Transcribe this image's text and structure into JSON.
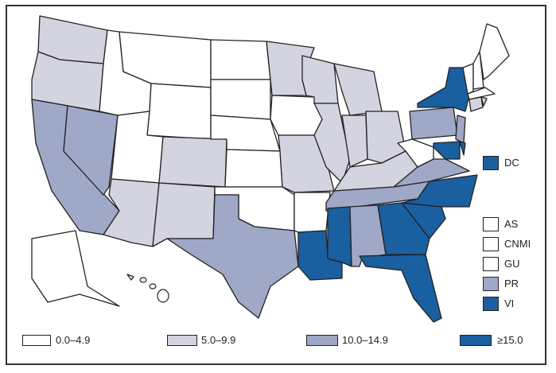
{
  "colors": {
    "c0": "#ffffff",
    "c1": "#d3d4df",
    "c2": "#a0a8c8",
    "c3": "#1a5fa0"
  },
  "legend": [
    {
      "label": "0.0–4.9",
      "cat": "c0"
    },
    {
      "label": "5.0–9.9",
      "cat": "c1"
    },
    {
      "label": "10.0–14.9",
      "cat": "c2"
    },
    {
      "label": "≥15.0",
      "cat": "c3"
    }
  ],
  "territories": [
    {
      "label": "DC",
      "cat": "c3"
    },
    {
      "label": "AS",
      "cat": "c0"
    },
    {
      "label": "CNMI",
      "cat": "c0"
    },
    {
      "label": "GU",
      "cat": "c0"
    },
    {
      "label": "PR",
      "cat": "c2"
    },
    {
      "label": "VI",
      "cat": "c3"
    }
  ],
  "states": {
    "WA": "c1",
    "OR": "c1",
    "CA": "c2",
    "NV": "c2",
    "ID": "c0",
    "MT": "c0",
    "WY": "c0",
    "UT": "c0",
    "CO": "c1",
    "AZ": "c1",
    "NM": "c1",
    "ND": "c0",
    "SD": "c0",
    "NE": "c0",
    "KS": "c0",
    "OK": "c0",
    "TX": "c2",
    "MN": "c1",
    "IA": "c0",
    "MO": "c1",
    "AR": "c0",
    "LA": "c3",
    "WI": "c1",
    "MI": "c1",
    "IL": "c1",
    "IN": "c1",
    "OH": "c1",
    "KY": "c1",
    "TN": "c2",
    "MS": "c3",
    "AL": "c2",
    "GA": "c3",
    "FL": "c3",
    "SC": "c3",
    "NC": "c3",
    "VA": "c2",
    "WV": "c0",
    "PA": "c2",
    "NY": "c3",
    "VT": "c0",
    "NH": "c0",
    "ME": "c0",
    "MA": "c0",
    "CT": "c1",
    "RI": "c1",
    "NJ": "c2",
    "DE": "c3",
    "MD": "c3",
    "AK": "c0",
    "HI": "c0"
  }
}
